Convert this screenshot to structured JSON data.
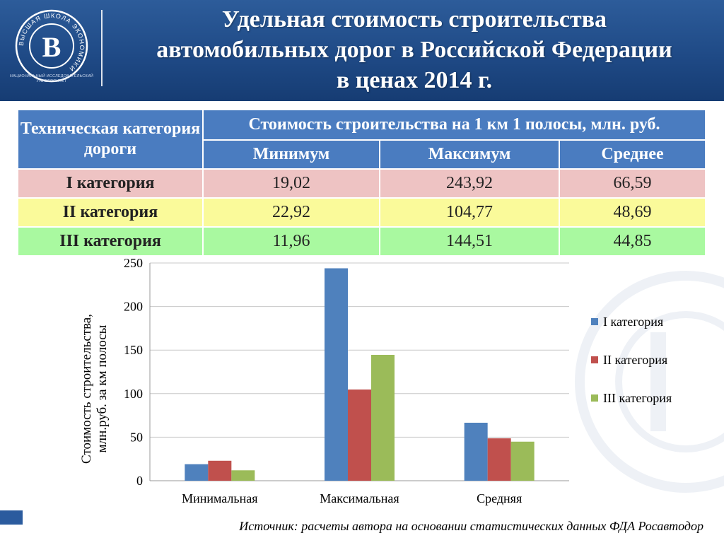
{
  "title": {
    "line1": "Удельная стоимость строительства",
    "line2": "автомобильных дорог в Российской Федерации",
    "line3": "в ценах 2014 г."
  },
  "logo": {
    "ring_text": "ВЫСШАЯ ШКОЛА ЭКОНОМИКИ",
    "caption_line1": "НАЦИОНАЛЬНЫЙ ИССЛЕДОВАТЕЛЬСКИЙ",
    "caption_line2": "УНИВЕРСИТЕТ"
  },
  "table": {
    "header_category": "Техническая категория дороги",
    "header_cost": "Стоимость строительства на 1 км 1 полосы, млн. руб.",
    "sub_headers": [
      "Минимум",
      "Максимум",
      "Среднее"
    ],
    "rows": [
      {
        "label": "I категория",
        "values": [
          "19,02",
          "243,92",
          "66,59"
        ]
      },
      {
        "label": "II категория",
        "values": [
          "22,92",
          "104,77",
          "48,69"
        ]
      },
      {
        "label": "III категория",
        "values": [
          "11,96",
          "144,51",
          "44,85"
        ]
      }
    ]
  },
  "chart_data": {
    "type": "bar",
    "categories": [
      "Минимальная",
      "Максимальная",
      "Средняя"
    ],
    "series": [
      {
        "name": "I категория",
        "values": [
          19.02,
          243.92,
          66.59
        ],
        "color": "#4f81bd"
      },
      {
        "name": "II категория",
        "values": [
          22.92,
          104.77,
          48.69
        ],
        "color": "#c0504d"
      },
      {
        "name": "III категория",
        "values": [
          11.96,
          144.51,
          44.85
        ],
        "color": "#9bbb59"
      }
    ],
    "ylabel_line1": "Стоимость строительства,",
    "ylabel_line2": "млн.руб. за км полосы",
    "ylim": [
      0,
      250
    ],
    "yticks": [
      "0",
      "50",
      "100",
      "150",
      "200",
      "250"
    ],
    "grid": true,
    "legend_position": "right"
  },
  "source": "Источник: расчеты автора на основании статистических данных ФДА Росавтодор",
  "colors": {
    "header_blue": "#1f4a86",
    "table_header": "#4a7cc0",
    "row1": "#eec3c3",
    "row2": "#fafa9a",
    "row3": "#a9f9a0"
  }
}
